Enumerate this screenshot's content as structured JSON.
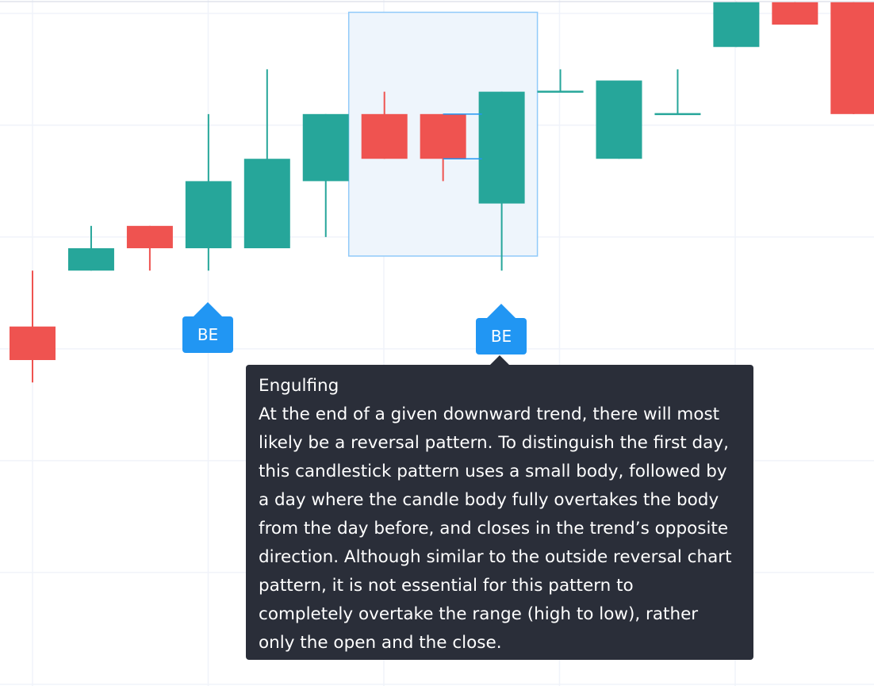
{
  "chart_data": {
    "type": "candlestick",
    "x": [
      1,
      2,
      3,
      4,
      5,
      6,
      7,
      8,
      9,
      10,
      11,
      12,
      13,
      14,
      15
    ],
    "ohlc": [
      {
        "open": 95,
        "high": 100,
        "low": 90,
        "close": 92,
        "direction": "down"
      },
      {
        "open": 100,
        "high": 104,
        "low": 100,
        "close": 102,
        "direction": "up"
      },
      {
        "open": 104,
        "high": 104,
        "low": 100,
        "close": 102,
        "direction": "down"
      },
      {
        "open": 102,
        "high": 114,
        "low": 100,
        "close": 108,
        "direction": "up"
      },
      {
        "open": 102,
        "high": 118,
        "low": 102,
        "close": 110,
        "direction": "up"
      },
      {
        "open": 108,
        "high": 114,
        "low": 103,
        "close": 114,
        "direction": "up"
      },
      {
        "open": 114,
        "high": 116,
        "low": 110,
        "close": 110,
        "direction": "down"
      },
      {
        "open": 114,
        "high": 114,
        "low": 108,
        "close": 110,
        "direction": "down"
      },
      {
        "open": 106,
        "high": 116,
        "low": 100,
        "close": 116,
        "direction": "up"
      },
      {
        "open": 116,
        "high": 118,
        "low": 116,
        "close": 116,
        "direction": "doji"
      },
      {
        "open": 110,
        "high": 117,
        "low": 110,
        "close": 117,
        "direction": "up"
      },
      {
        "open": 114,
        "high": 118,
        "low": 114,
        "close": 114,
        "direction": "doji"
      },
      {
        "open": 120,
        "high": 124,
        "low": 120,
        "close": 124,
        "direction": "up"
      },
      {
        "open": 124,
        "high": 124,
        "low": 122,
        "close": 122,
        "direction": "down"
      },
      {
        "open": 124,
        "high": 124,
        "low": 114,
        "close": 114,
        "direction": "down"
      }
    ],
    "ylim": [
      80,
      124.2
    ],
    "grid": true,
    "highlight": {
      "from_index": 6,
      "to_index": 8
    },
    "markers": [
      {
        "index": 3,
        "label": "BE"
      },
      {
        "index": 8,
        "label": "BE"
      }
    ],
    "colors": {
      "up": "#26a69a",
      "down": "#ef5350",
      "marker": "#2196f3",
      "highlight_fill": "#eef5fc",
      "highlight_border": "#90caf9",
      "grid": "#f0f3fa",
      "tooltip_bg": "#2a2e39",
      "line": "#2196f3"
    }
  },
  "tooltip": {
    "title": "Engulfing",
    "lines": [
      "At the end of a given downward trend, there will most",
      "likely be a reversal pattern. To distinguish the first day,",
      "this candlestick pattern uses a small body, followed by",
      "a day where the candle body fully overtakes the body",
      "from the day before, and closes in the trend’s opposite",
      "direction. Although similar to the outside reversal chart",
      "pattern, it is not essential for this pattern to",
      "completely overtake the range (high to low), rather",
      "only the open and the close."
    ]
  }
}
